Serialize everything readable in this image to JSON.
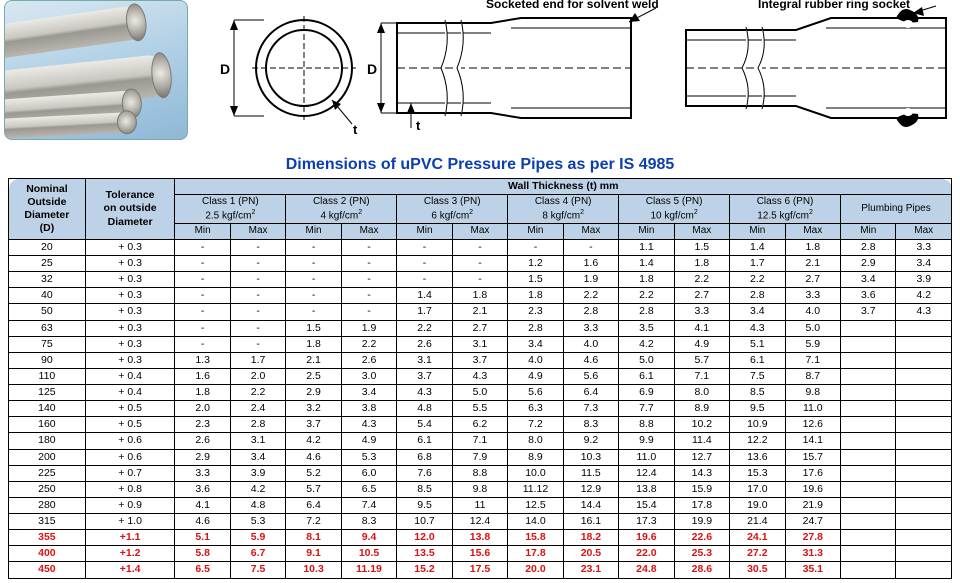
{
  "callouts": {
    "solvent": "Socketed end for solvent weld",
    "rubber": "Integral rubber ring socket"
  },
  "title": "Dimensions of uPVC Pressure Pipes as per IS 4985",
  "headers": {
    "nominal": "Nominal\nOutside\nDiameter\n(D)",
    "tolerance": "Tolerance\non outside\nDiameter",
    "wall": "Wall Thickness (t) mm",
    "classes": [
      {
        "top": "Class 1 (PN)",
        "bot": "2.5 kgf/cm²"
      },
      {
        "top": "Class 2 (PN)",
        "bot": "4 kgf/cm²"
      },
      {
        "top": "Class 3 (PN)",
        "bot": "6 kgf/cm²"
      },
      {
        "top": "Class 4 (PN)",
        "bot": "8 kgf/cm²"
      },
      {
        "top": "Class 5 (PN)",
        "bot": "10 kgf/cm²"
      },
      {
        "top": "Class 6 (PN)",
        "bot": "12.5 kgf/cm²"
      }
    ],
    "plumbing": "Plumbing Pipes",
    "min": "Min",
    "max": "Max"
  },
  "rows": [
    {
      "d": "20",
      "tol": "+ 0.3",
      "v": [
        "-",
        "-",
        "-",
        "-",
        "-",
        "-",
        "-",
        "-",
        "1.1",
        "1.5",
        "1.4",
        "1.8",
        "2.8",
        "3.3"
      ]
    },
    {
      "d": "25",
      "tol": "+ 0.3",
      "v": [
        "-",
        "-",
        "-",
        "-",
        "-",
        "-",
        "1.2",
        "1.6",
        "1.4",
        "1.8",
        "1.7",
        "2.1",
        "2.9",
        "3.4"
      ]
    },
    {
      "d": "32",
      "tol": "+ 0.3",
      "v": [
        "-",
        "-",
        "-",
        "-",
        "-",
        "-",
        "1.5",
        "1.9",
        "1.8",
        "2.2",
        "2.2",
        "2.7",
        "3.4",
        "3.9"
      ]
    },
    {
      "d": "40",
      "tol": "+ 0.3",
      "v": [
        "-",
        "-",
        "-",
        "-",
        "1.4",
        "1.8",
        "1.8",
        "2.2",
        "2.2",
        "2.7",
        "2.8",
        "3.3",
        "3.6",
        "4.2"
      ]
    },
    {
      "d": "50",
      "tol": "+ 0.3",
      "v": [
        "-",
        "-",
        "-",
        "-",
        "1.7",
        "2.1",
        "2.3",
        "2.8",
        "2.8",
        "3.3",
        "3.4",
        "4.0",
        "3.7",
        "4.3"
      ]
    },
    {
      "d": "63",
      "tol": "+ 0.3",
      "v": [
        "-",
        "-",
        "1.5",
        "1.9",
        "2.2",
        "2.7",
        "2.8",
        "3.3",
        "3.5",
        "4.1",
        "4.3",
        "5.0",
        "",
        ""
      ]
    },
    {
      "d": "75",
      "tol": "+ 0.3",
      "v": [
        "-",
        "-",
        "1.8",
        "2.2",
        "2.6",
        "3.1",
        "3.4",
        "4.0",
        "4.2",
        "4.9",
        "5.1",
        "5.9",
        "",
        ""
      ]
    },
    {
      "d": "90",
      "tol": "+ 0.3",
      "v": [
        "1.3",
        "1.7",
        "2.1",
        "2.6",
        "3.1",
        "3.7",
        "4.0",
        "4.6",
        "5.0",
        "5.7",
        "6.1",
        "7.1",
        "",
        ""
      ]
    },
    {
      "d": "110",
      "tol": "+ 0.4",
      "v": [
        "1.6",
        "2.0",
        "2.5",
        "3.0",
        "3.7",
        "4.3",
        "4.9",
        "5.6",
        "6.1",
        "7.1",
        "7.5",
        "8.7",
        "",
        ""
      ]
    },
    {
      "d": "125",
      "tol": "+ 0.4",
      "v": [
        "1.8",
        "2.2",
        "2.9",
        "3.4",
        "4.3",
        "5.0",
        "5.6",
        "6.4",
        "6.9",
        "8.0",
        "8.5",
        "9.8",
        "",
        ""
      ]
    },
    {
      "d": "140",
      "tol": "+ 0.5",
      "v": [
        "2.0",
        "2.4",
        "3.2",
        "3.8",
        "4.8",
        "5.5",
        "6.3",
        "7.3",
        "7.7",
        "8.9",
        "9.5",
        "11.0",
        "",
        ""
      ]
    },
    {
      "d": "160",
      "tol": "+ 0.5",
      "v": [
        "2.3",
        "2.8",
        "3.7",
        "4.3",
        "5.4",
        "6.2",
        "7.2",
        "8.3",
        "8.8",
        "10.2",
        "10.9",
        "12.6",
        "",
        ""
      ]
    },
    {
      "d": "180",
      "tol": "+ 0.6",
      "v": [
        "2.6",
        "3.1",
        "4.2",
        "4.9",
        "6.1",
        "7.1",
        "8.0",
        "9.2",
        "9.9",
        "11.4",
        "12.2",
        "14.1",
        "",
        ""
      ]
    },
    {
      "d": "200",
      "tol": "+ 0.6",
      "v": [
        "2.9",
        "3.4",
        "4.6",
        "5.3",
        "6.8",
        "7.9",
        "8.9",
        "10.3",
        "11.0",
        "12.7",
        "13.6",
        "15.7",
        "",
        ""
      ]
    },
    {
      "d": "225",
      "tol": "+ 0.7",
      "v": [
        "3.3",
        "3.9",
        "5.2",
        "6.0",
        "7.6",
        "8.8",
        "10.0",
        "11.5",
        "12.4",
        "14.3",
        "15.3",
        "17.6",
        "",
        ""
      ]
    },
    {
      "d": "250",
      "tol": "+ 0.8",
      "v": [
        "3.6",
        "4.2",
        "5.7",
        "6.5",
        "8.5",
        "9.8",
        "11.12",
        "12.9",
        "13.8",
        "15.9",
        "17.0",
        "19.6",
        "",
        ""
      ]
    },
    {
      "d": "280",
      "tol": "+ 0.9",
      "v": [
        "4.1",
        "4.8",
        "6.4",
        "7.4",
        "9.5",
        "11",
        "12.5",
        "14.4",
        "15.4",
        "17.8",
        "19.0",
        "21.9",
        "",
        ""
      ]
    },
    {
      "d": "315",
      "tol": "+ 1.0",
      "v": [
        "4.6",
        "5.3",
        "7.2",
        "8.3",
        "10.7",
        "12.4",
        "14.0",
        "16.1",
        "17.3",
        "19.9",
        "21.4",
        "24.7",
        "",
        ""
      ]
    },
    {
      "d": "355",
      "tol": "+1.1",
      "v": [
        "5.1",
        "5.9",
        "8.1",
        "9.4",
        "12.0",
        "13.8",
        "15.8",
        "18.2",
        "19.6",
        "22.6",
        "24.1",
        "27.8",
        "",
        ""
      ],
      "red": true
    },
    {
      "d": "400",
      "tol": "+1.2",
      "v": [
        "5.8",
        "6.7",
        "9.1",
        "10.5",
        "13.5",
        "15.6",
        "17.8",
        "20.5",
        "22.0",
        "25.3",
        "27.2",
        "31.3",
        "",
        ""
      ],
      "red": true
    },
    {
      "d": "450",
      "tol": "+1.4",
      "v": [
        "6.5",
        "7.5",
        "10.3",
        "11.19",
        "15.2",
        "17.5",
        "20.0",
        "23.1",
        "24.8",
        "28.6",
        "30.5",
        "35.1",
        "",
        ""
      ],
      "red": true
    }
  ],
  "diagram_labels": {
    "D": "D",
    "t": "t"
  }
}
